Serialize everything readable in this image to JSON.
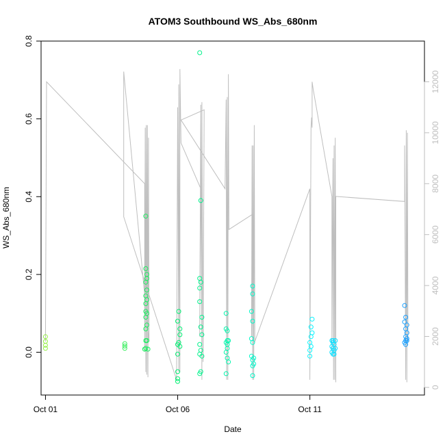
{
  "chart_data": {
    "type": "scatter",
    "title": "ATOM3 Southbound WS_Abs_680nm",
    "xlabel": "Date",
    "ylabel": "WS_Abs_680nm",
    "xlim": [
      "2016-09-30T20:00",
      "2016-10-15T08:00"
    ],
    "ylim": [
      -0.11,
      0.8
    ],
    "y2lim": [
      -300,
      13600
    ],
    "x_ticks": [
      {
        "label": "Oct 01",
        "value": "2016-10-01T00:00"
      },
      {
        "label": "Oct 06",
        "value": "2016-10-06T00:00"
      },
      {
        "label": "Oct 11",
        "value": "2016-10-11T00:00"
      }
    ],
    "y_ticks": [
      0.0,
      0.2,
      0.4,
      0.6,
      0.8
    ],
    "y_tick_labels": [
      "0.0",
      "0.2",
      "0.4",
      "0.6",
      "0.8"
    ],
    "y2_ticks": [
      0,
      2000,
      4000,
      6000,
      8000,
      10000,
      12000
    ],
    "y2_tick_labels": [
      "0",
      "2000",
      "4000",
      "6000",
      "8000",
      "10000",
      "12000"
    ],
    "grid": false,
    "series": [
      {
        "role": "scatter",
        "color_scale": [
          "#99ee44",
          "#00ee66",
          "#00ffff",
          "#1e90ff"
        ],
        "points": [
          [
            "2016-10-01T00:00",
            0.04
          ],
          [
            "2016-10-01T00:00",
            0.028
          ],
          [
            "2016-10-01T00:00",
            0.018
          ],
          [
            "2016-10-01T00:00",
            0.01
          ],
          [
            "2016-10-04T00:00",
            0.022
          ],
          [
            "2016-10-04T00:00",
            0.016
          ],
          [
            "2016-10-04T00:00",
            0.01
          ],
          [
            "2016-10-04T19:00",
            0.35
          ],
          [
            "2016-10-04T19:00",
            0.215
          ],
          [
            "2016-10-04T19:00",
            0.18
          ],
          [
            "2016-10-04T19:00",
            0.145
          ],
          [
            "2016-10-04T19:00",
            0.125
          ],
          [
            "2016-10-04T19:00",
            0.105
          ],
          [
            "2016-10-04T19:00",
            0.09
          ],
          [
            "2016-10-04T19:00",
            0.06
          ],
          [
            "2016-10-04T19:00",
            0.03
          ],
          [
            "2016-10-04T19:00",
            0.01
          ],
          [
            "2016-10-04T18:00",
            0.008
          ],
          [
            "2016-10-04T20:00",
            0.2
          ],
          [
            "2016-10-04T20:00",
            0.19
          ],
          [
            "2016-10-04T20:00",
            0.16
          ],
          [
            "2016-10-04T20:00",
            0.135
          ],
          [
            "2016-10-04T20:00",
            0.1
          ],
          [
            "2016-10-04T20:00",
            0.07
          ],
          [
            "2016-10-04T20:00",
            0.03
          ],
          [
            "2016-10-04T21:00",
            0.008
          ],
          [
            "2016-10-06T00:00",
            0.08
          ],
          [
            "2016-10-06T00:00",
            0.02
          ],
          [
            "2016-10-06T00:00",
            -0.005
          ],
          [
            "2016-10-06T00:00",
            -0.05
          ],
          [
            "2016-10-06T00:00",
            -0.068
          ],
          [
            "2016-10-06T00:00",
            -0.075
          ],
          [
            "2016-10-06T01:00",
            0.105
          ],
          [
            "2016-10-06T02:00",
            0.06
          ],
          [
            "2016-10-06T02:00",
            0.045
          ],
          [
            "2016-10-06T02:00",
            0.015
          ],
          [
            "2016-10-06T01:00",
            0.025
          ],
          [
            "2016-10-06T20:00",
            0.77
          ],
          [
            "2016-10-06T21:00",
            0.39
          ],
          [
            "2016-10-06T20:00",
            0.19
          ],
          [
            "2016-10-06T21:00",
            0.18
          ],
          [
            "2016-10-06T20:00",
            0.165
          ],
          [
            "2016-10-06T20:00",
            0.13
          ],
          [
            "2016-10-06T22:00",
            0.09
          ],
          [
            "2016-10-06T21:00",
            0.065
          ],
          [
            "2016-10-06T22:00",
            0.045
          ],
          [
            "2016-10-06T20:00",
            0.02
          ],
          [
            "2016-10-06T21:00",
            0.005
          ],
          [
            "2016-10-06T20:00",
            -0.005
          ],
          [
            "2016-10-06T22:00",
            -0.01
          ],
          [
            "2016-10-06T21:00",
            -0.05
          ],
          [
            "2016-10-06T20:00",
            -0.055
          ],
          [
            "2016-10-07T20:00",
            0.1
          ],
          [
            "2016-10-07T20:00",
            0.06
          ],
          [
            "2016-10-07T21:00",
            0.055
          ],
          [
            "2016-10-07T21:00",
            0.03
          ],
          [
            "2016-10-07T20:00",
            0.025
          ],
          [
            "2016-10-07T21:00",
            0.02
          ],
          [
            "2016-10-07T22:00",
            0.03
          ],
          [
            "2016-10-07T21:00",
            0.01
          ],
          [
            "2016-10-07T20:00",
            0.0
          ],
          [
            "2016-10-07T21:00",
            -0.015
          ],
          [
            "2016-10-07T22:00",
            -0.025
          ],
          [
            "2016-10-07T20:00",
            -0.055
          ],
          [
            "2016-10-08T20:00",
            0.17
          ],
          [
            "2016-10-08T20:00",
            0.15
          ],
          [
            "2016-10-08T19:00",
            0.105
          ],
          [
            "2016-10-08T20:00",
            0.08
          ],
          [
            "2016-10-08T19:00",
            0.035
          ],
          [
            "2016-10-08T20:00",
            0.025
          ],
          [
            "2016-10-08T19:00",
            -0.01
          ],
          [
            "2016-10-08T21:00",
            -0.015
          ],
          [
            "2016-10-08T20:00",
            -0.02
          ],
          [
            "2016-10-08T20:00",
            -0.035
          ],
          [
            "2016-10-08T21:00",
            -0.03
          ],
          [
            "2016-10-08T20:00",
            -0.06
          ],
          [
            "2016-10-11T02:00",
            0.085
          ],
          [
            "2016-10-11T01:00",
            0.065
          ],
          [
            "2016-10-11T02:00",
            0.05
          ],
          [
            "2016-10-11T01:00",
            0.04
          ],
          [
            "2016-10-11T00:00",
            0.025
          ],
          [
            "2016-10-11T01:00",
            0.015
          ],
          [
            "2016-10-11T00:00",
            0.005
          ],
          [
            "2016-10-11T00:00",
            -0.01
          ],
          [
            "2016-10-11T20:00",
            0.03
          ],
          [
            "2016-10-11T21:00",
            0.025
          ],
          [
            "2016-10-11T20:00",
            0.015
          ],
          [
            "2016-10-11T21:00",
            0.01
          ],
          [
            "2016-10-11T22:00",
            0.005
          ],
          [
            "2016-10-11T20:00",
            0.0
          ],
          [
            "2016-10-11T21:00",
            -0.005
          ],
          [
            "2016-10-11T22:00",
            0.02
          ],
          [
            "2016-10-11T23:00",
            0.03
          ],
          [
            "2016-10-11T23:00",
            0.01
          ],
          [
            "2016-10-11T22:00",
            -0.005
          ],
          [
            "2016-10-11T21:00",
            0.03
          ],
          [
            "2016-10-14T14:00",
            0.12
          ],
          [
            "2016-10-14T15:00",
            0.09
          ],
          [
            "2016-10-14T14:00",
            0.078
          ],
          [
            "2016-10-14T16:00",
            0.07
          ],
          [
            "2016-10-14T15:00",
            0.06
          ],
          [
            "2016-10-14T16:00",
            0.05
          ],
          [
            "2016-10-14T15:00",
            0.04
          ],
          [
            "2016-10-14T16:00",
            0.035
          ],
          [
            "2016-10-14T14:00",
            0.025
          ],
          [
            "2016-10-14T15:00",
            0.02
          ],
          [
            "2016-10-14T16:00",
            0.03
          ],
          [
            "2016-10-14T15:00",
            0.03
          ]
        ]
      },
      {
        "role": "line",
        "axis": "right",
        "color": "#bebebe",
        "points": [
          [
            "2016-10-01T00:00",
            1800
          ],
          [
            "2016-10-01T01:00",
            12000
          ],
          [
            "2016-10-04T18:00",
            8000
          ],
          [
            "2016-10-04T18:00",
            1400
          ],
          [
            "2016-10-04T18:30",
            10200
          ],
          [
            "2016-10-04T19:00",
            600
          ],
          [
            "2016-10-04T19:30",
            10300
          ],
          [
            "2016-10-04T20:00",
            500
          ],
          [
            "2016-10-04T20:30",
            10300
          ],
          [
            "2016-10-04T21:00",
            400
          ],
          [
            "2016-10-04T21:30",
            9800
          ],
          [
            "2016-10-04T22:00",
            1800
          ],
          [
            "2016-10-03T23:00",
            12400
          ],
          [
            "2016-10-03T23:00",
            6700
          ],
          [
            "2016-10-05T23:00",
            300
          ],
          [
            "2016-10-06T00:00",
            11000
          ],
          [
            "2016-10-06T01:00",
            600
          ],
          [
            "2016-10-06T01:00",
            11900
          ],
          [
            "2016-10-06T02:00",
            600
          ],
          [
            "2016-10-06T02:00",
            12500
          ],
          [
            "2016-10-06T03:00",
            9600
          ],
          [
            "2016-10-06T21:00",
            7800
          ],
          [
            "2016-10-06T20:00",
            2000
          ],
          [
            "2016-10-06T21:00",
            11100
          ],
          [
            "2016-10-06T22:00",
            300
          ],
          [
            "2016-10-06T22:00",
            11200
          ],
          [
            "2016-10-06T23:00",
            1000
          ],
          [
            "2016-10-07T00:00",
            10900
          ],
          [
            "2016-10-06T03:00",
            10500
          ],
          [
            "2016-10-07T19:00",
            7800
          ],
          [
            "2016-10-07T20:00",
            11300
          ],
          [
            "2016-10-07T20:30",
            300
          ],
          [
            "2016-10-07T21:00",
            11400
          ],
          [
            "2016-10-07T21:30",
            300
          ],
          [
            "2016-10-07T22:00",
            12300
          ],
          [
            "2016-10-07T22:30",
            6200
          ],
          [
            "2016-10-08T20:00",
            6800
          ],
          [
            "2016-10-08T19:00",
            2000
          ],
          [
            "2016-10-08T19:30",
            9500
          ],
          [
            "2016-10-08T20:00",
            300
          ],
          [
            "2016-10-08T20:30",
            9500
          ],
          [
            "2016-10-08T21:00",
            300
          ],
          [
            "2016-10-08T21:30",
            10300
          ],
          [
            "2016-10-08T22:00",
            1800
          ],
          [
            "2016-10-11T00:00",
            7800
          ],
          [
            "2016-10-11T00:00",
            300
          ],
          [
            "2016-10-11T01:00",
            10200
          ],
          [
            "2016-10-11T01:30",
            10600
          ],
          [
            "2016-10-11T02:00",
            10200
          ],
          [
            "2016-10-11T02:00",
            12000
          ],
          [
            "2016-10-11T03:00",
            11700
          ],
          [
            "2016-10-11T20:00",
            7500
          ],
          [
            "2016-10-11T20:00",
            1400
          ],
          [
            "2016-10-11T21:00",
            9000
          ],
          [
            "2016-10-11T21:30",
            300
          ],
          [
            "2016-10-11T22:00",
            9500
          ],
          [
            "2016-10-11T22:30",
            300
          ],
          [
            "2016-10-11T23:00",
            9800
          ],
          [
            "2016-10-11T23:30",
            200
          ],
          [
            "2016-10-11T23:30",
            7500
          ],
          [
            "2016-10-14T14:00",
            7300
          ],
          [
            "2016-10-14T14:00",
            9500
          ],
          [
            "2016-10-14T15:00",
            300
          ],
          [
            "2016-10-14T15:30",
            10100
          ],
          [
            "2016-10-14T16:00",
            200
          ],
          [
            "2016-10-14T16:30",
            10000
          ],
          [
            "2016-10-14T17:00",
            1800
          ]
        ]
      }
    ]
  }
}
